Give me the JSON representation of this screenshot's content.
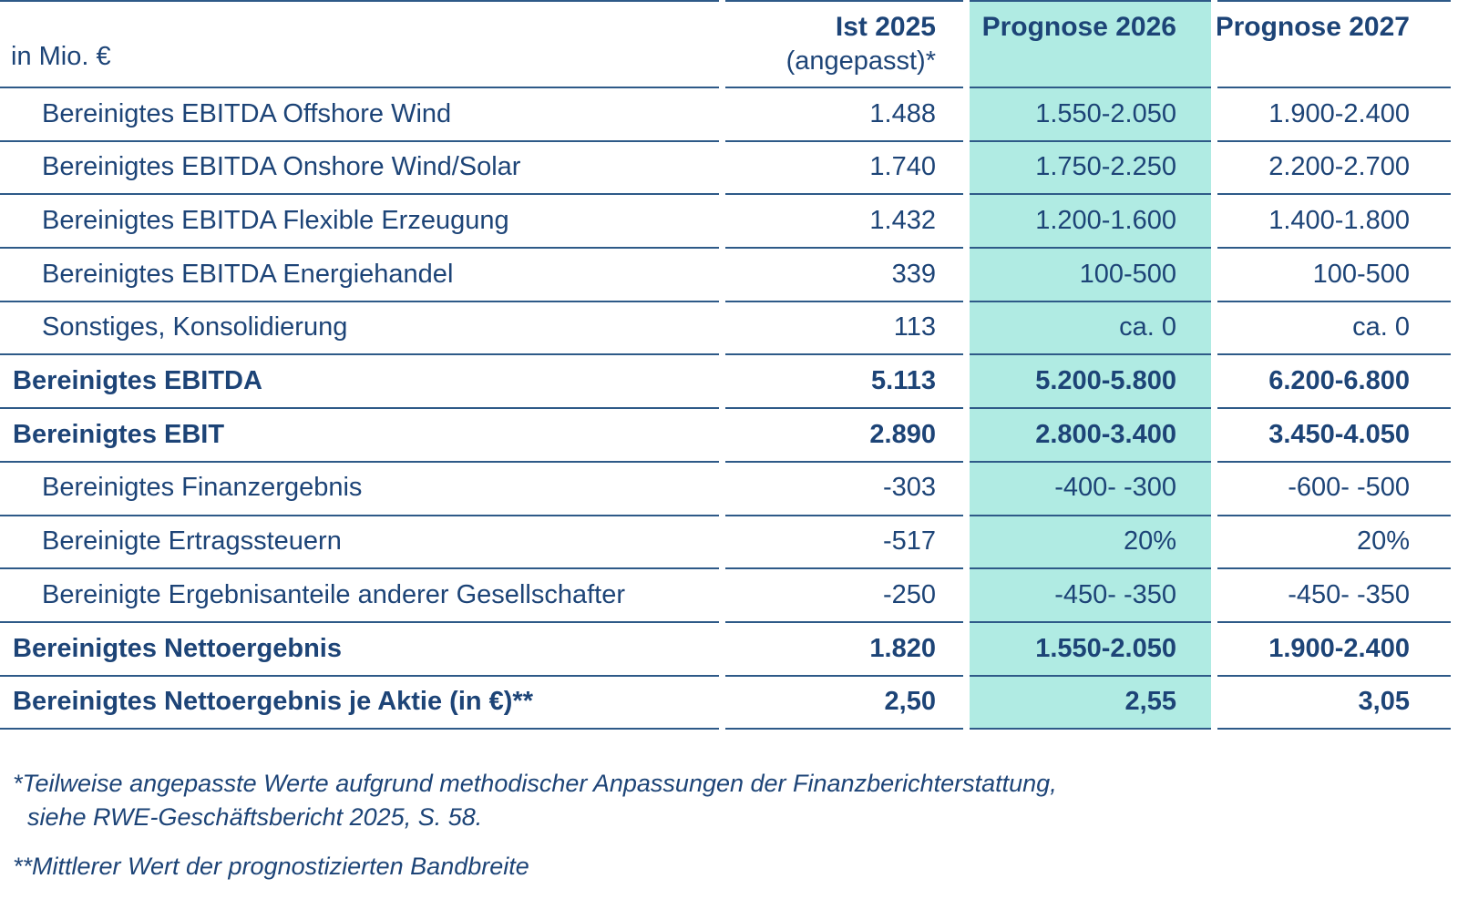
{
  "chart_data": {
    "type": "table",
    "unit_label": "in Mio. €",
    "columns": [
      {
        "label": "Ist 2025",
        "sublabel": "(angepasst)*",
        "highlight": false
      },
      {
        "label": "Prognose 2026",
        "sublabel": "",
        "highlight": true
      },
      {
        "label": "Prognose 2027",
        "sublabel": "",
        "highlight": false
      }
    ],
    "rows": [
      {
        "label": "Bereinigtes EBITDA Offshore Wind",
        "bold": false,
        "values": [
          "1.488",
          "1.550-2.050",
          "1.900-2.400"
        ]
      },
      {
        "label": "Bereinigtes EBITDA Onshore Wind/Solar",
        "bold": false,
        "values": [
          "1.740",
          "1.750-2.250",
          "2.200-2.700"
        ]
      },
      {
        "label": "Bereinigtes EBITDA Flexible Erzeugung",
        "bold": false,
        "values": [
          "1.432",
          "1.200-1.600",
          "1.400-1.800"
        ]
      },
      {
        "label": "Bereinigtes EBITDA Energiehandel",
        "bold": false,
        "values": [
          "339",
          "100-500",
          "100-500"
        ]
      },
      {
        "label": "Sonstiges, Konsolidierung",
        "bold": false,
        "values": [
          "113",
          "ca. 0",
          "ca. 0"
        ]
      },
      {
        "label": "Bereinigtes EBITDA",
        "bold": true,
        "values": [
          "5.113",
          "5.200-5.800",
          "6.200-6.800"
        ]
      },
      {
        "label": "Bereinigtes EBIT",
        "bold": true,
        "values": [
          "2.890",
          "2.800-3.400",
          "3.450-4.050"
        ]
      },
      {
        "label": "Bereinigtes Finanzergebnis",
        "bold": false,
        "values": [
          "-303",
          "-400- -300",
          "-600- -500"
        ]
      },
      {
        "label": "Bereinigte Ertragssteuern",
        "bold": false,
        "values": [
          "-517",
          "20%",
          "20%"
        ]
      },
      {
        "label": "Bereinigte Ergebnisanteile anderer Gesellschafter",
        "bold": false,
        "values": [
          "-250",
          "-450- -350",
          "-450- -350"
        ]
      },
      {
        "label": "Bereinigtes Nettoergebnis",
        "bold": true,
        "values": [
          "1.820",
          "1.550-2.050",
          "1.900-2.400"
        ]
      },
      {
        "label": "Bereinigtes Nettoergebnis je Aktie (in €)**",
        "bold": true,
        "values": [
          "2,50",
          "2,55",
          "3,05"
        ]
      }
    ]
  },
  "footnotes": {
    "first_line1": "*Teilweise angepasste Werte aufgrund methodischer Anpassungen der Finanzberichterstattung,",
    "first_line2": "siehe RWE-Geschäftsbericht 2025, S. 58.",
    "second": "**Mittlerer Wert der prognostizierten Bandbreite"
  },
  "colors": {
    "text": "#1d4477",
    "border": "#2e5a88",
    "highlight": "#b0ebe3",
    "background": "#ffffff"
  }
}
